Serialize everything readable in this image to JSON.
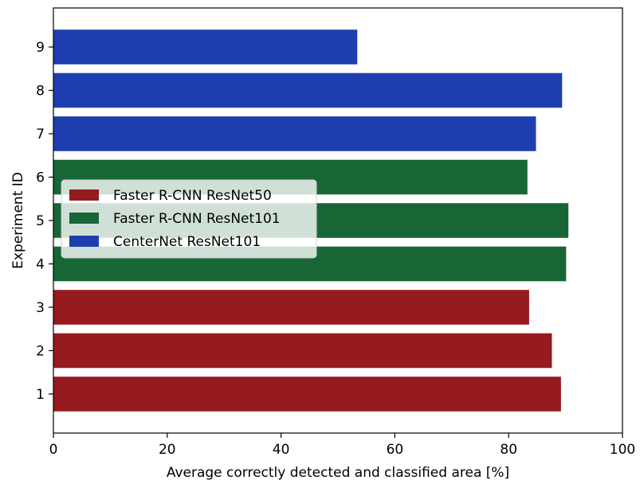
{
  "chart_data": {
    "type": "bar",
    "orientation": "horizontal",
    "xlabel": "Average correctly detected and classified area [%]",
    "ylabel": "Experiment ID",
    "xlim": [
      0,
      100
    ],
    "xticks": [
      0,
      20,
      40,
      60,
      80,
      100
    ],
    "categories": [
      "1",
      "2",
      "3",
      "4",
      "5",
      "6",
      "7",
      "8",
      "9"
    ],
    "bars": [
      {
        "id": "1",
        "value": 89.2,
        "series": "Faster R-CNN ResNet50"
      },
      {
        "id": "2",
        "value": 87.6,
        "series": "Faster R-CNN ResNet50"
      },
      {
        "id": "3",
        "value": 83.6,
        "series": "Faster R-CNN ResNet50"
      },
      {
        "id": "4",
        "value": 90.1,
        "series": "Faster R-CNN ResNet101"
      },
      {
        "id": "5",
        "value": 90.5,
        "series": "Faster R-CNN ResNet101"
      },
      {
        "id": "6",
        "value": 83.3,
        "series": "Faster R-CNN ResNet101"
      },
      {
        "id": "7",
        "value": 84.8,
        "series": "CenterNet ResNet101"
      },
      {
        "id": "8",
        "value": 89.4,
        "series": "CenterNet ResNet101"
      },
      {
        "id": "9",
        "value": 53.4,
        "series": "CenterNet ResNet101"
      }
    ],
    "series": [
      {
        "name": "Faster R-CNN ResNet50",
        "color": "#961b1f"
      },
      {
        "name": "Faster R-CNN ResNet101",
        "color": "#186636"
      },
      {
        "name": "CenterNet ResNet101",
        "color": "#1e3eaf"
      }
    ],
    "legend_position": "center-left",
    "grid": false
  }
}
